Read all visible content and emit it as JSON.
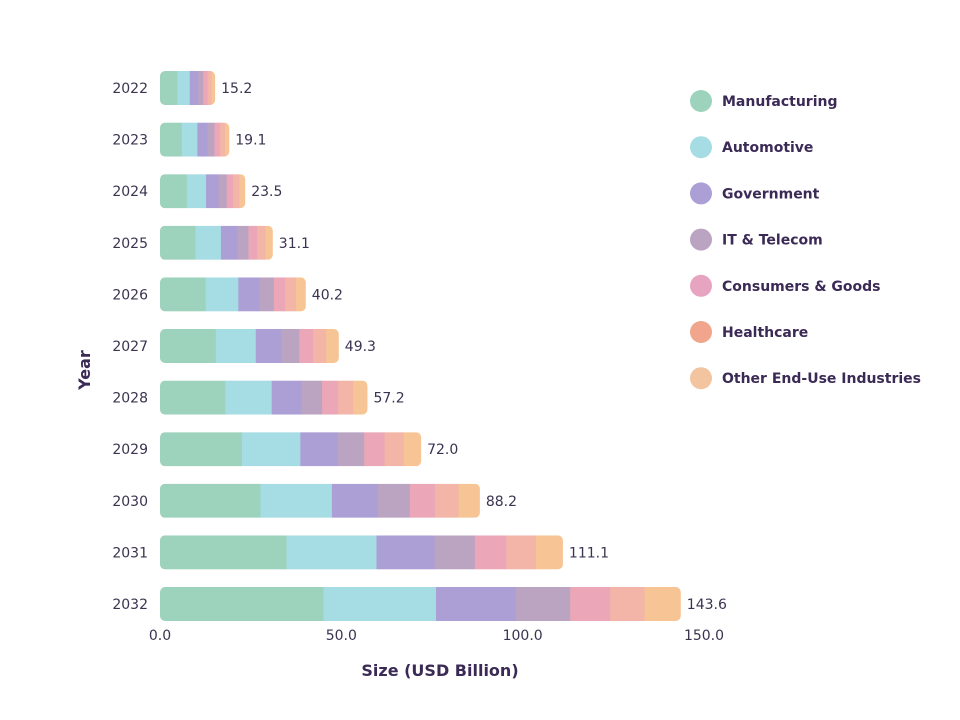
{
  "chart_data": {
    "type": "bar",
    "orientation": "horizontal",
    "stacked": true,
    "xlabel": "Size (USD Billion)",
    "ylabel": "Year",
    "xlim": [
      0,
      150
    ],
    "x_ticks": [
      "0.0",
      "50.0",
      "100.0",
      "150.0"
    ],
    "categories": [
      "2022",
      "2023",
      "2024",
      "2025",
      "2026",
      "2027",
      "2028",
      "2029",
      "2030",
      "2031",
      "2032"
    ],
    "totals": [
      "15.2",
      "19.1",
      "23.5",
      "31.1",
      "40.2",
      "49.3",
      "57.2",
      "72.0",
      "88.2",
      "111.1",
      "143.6"
    ],
    "grid": false,
    "legend_position": "right",
    "series": [
      {
        "name": "Manufacturing",
        "color": "#9dd3bd",
        "values": [
          4.8,
          6.0,
          7.4,
          9.8,
          12.6,
          15.4,
          18.0,
          22.6,
          27.7,
          34.9,
          45.1
        ]
      },
      {
        "name": "Automotive",
        "color": "#a6dce3",
        "values": [
          3.4,
          4.3,
          5.3,
          7.0,
          9.0,
          11.0,
          12.8,
          16.1,
          19.7,
          24.8,
          31.0
        ]
      },
      {
        "name": "Government",
        "color": "#ab9fd6",
        "values": [
          2.2,
          2.8,
          3.4,
          4.5,
          5.8,
          7.1,
          8.2,
          10.4,
          12.7,
          16.0,
          22.0
        ]
      },
      {
        "name": "IT & Telecom",
        "color": "#bba4c2",
        "values": [
          1.5,
          1.9,
          2.3,
          3.1,
          4.0,
          4.9,
          5.7,
          7.2,
          8.8,
          11.1,
          15.0
        ]
      },
      {
        "name": "Consumers & Goods",
        "color": "#eba7b7",
        "values": [
          1.2,
          1.5,
          1.8,
          2.4,
          3.1,
          3.8,
          4.4,
          5.6,
          6.9,
          8.7,
          11.0
        ]
      },
      {
        "name": "Healthcare",
        "color": "#f2b5a8",
        "values": [
          1.1,
          1.4,
          1.7,
          2.3,
          3.0,
          3.6,
          4.2,
          5.3,
          6.5,
          8.2,
          9.5
        ]
      },
      {
        "name": "Other End-Use Industries",
        "color": "#f7c595",
        "values": [
          1.0,
          1.2,
          1.6,
          2.0,
          2.7,
          3.5,
          3.9,
          4.8,
          5.9,
          7.4,
          10.0
        ]
      }
    ],
    "legend_colors": [
      "#9dd3bd",
      "#a6dce3",
      "#ab9fd6",
      "#bba4c2",
      "#e6a4c0",
      "#f0a58c",
      "#f2c4a0"
    ]
  }
}
